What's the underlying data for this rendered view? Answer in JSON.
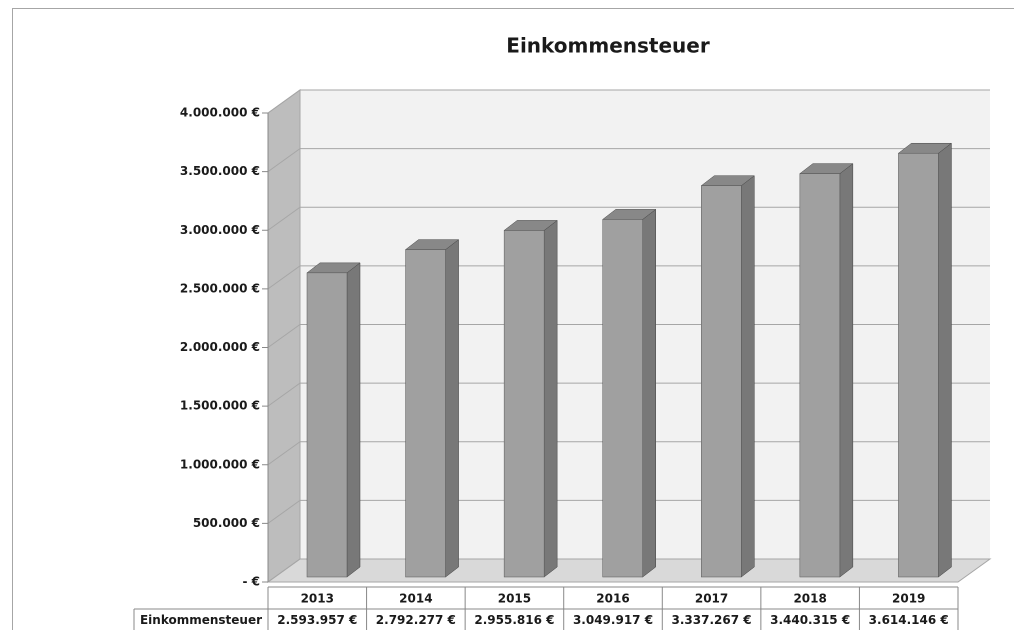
{
  "chart_data": {
    "type": "bar3d",
    "title": "Einkommensteuer",
    "categories": [
      "2013",
      "2014",
      "2015",
      "2016",
      "2017",
      "2018",
      "2019"
    ],
    "series": [
      {
        "name": "Einkommensteuer",
        "color": "#a0a0a0",
        "values": [
          2593957,
          2792277,
          2955816,
          3049917,
          3337267,
          3440315,
          3614146
        ],
        "value_labels": [
          "2.593.957 €",
          "2.792.277 €",
          "2.955.816 €",
          "3.049.917 €",
          "3.337.267 €",
          "3.440.315 €",
          "3.614.146 €"
        ]
      }
    ],
    "ylim": [
      0,
      4000000
    ],
    "yticks": [
      {
        "value": 0,
        "label": "- €"
      },
      {
        "value": 500000,
        "label": "500.000 €"
      },
      {
        "value": 1000000,
        "label": "1.000.000 €"
      },
      {
        "value": 1500000,
        "label": "1.500.000 €"
      },
      {
        "value": 2000000,
        "label": "2.000.000 €"
      },
      {
        "value": 2500000,
        "label": "2.500.000 €"
      },
      {
        "value": 3000000,
        "label": "3.000.000 €"
      },
      {
        "value": 3500000,
        "label": "3.500.000 €"
      },
      {
        "value": 4000000,
        "label": "4.000.000 €"
      }
    ],
    "grid": true,
    "data_table": true
  }
}
